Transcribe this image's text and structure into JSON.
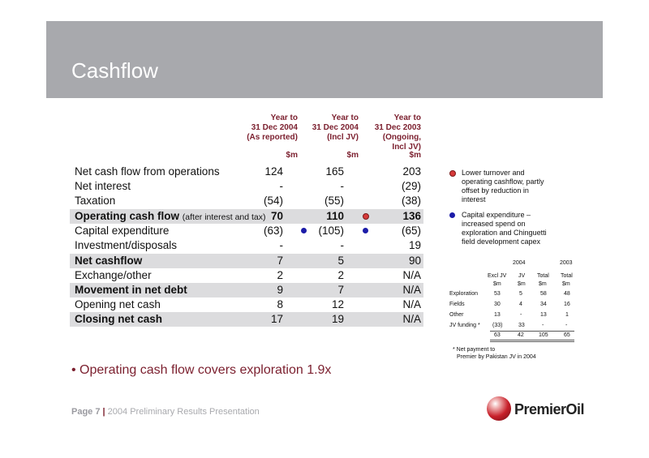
{
  "title": "Cashflow",
  "columns": [
    {
      "lines": [
        "Year to",
        "31 Dec 2004",
        "(As reported)"
      ],
      "unit": "$m"
    },
    {
      "lines": [
        "Year to",
        "31 Dec 2004",
        "(Incl JV)"
      ],
      "unit": "$m"
    },
    {
      "lines": [
        "Year to",
        "31 Dec 2003",
        "(Ongoing,",
        "Incl JV)"
      ],
      "unit": "$m"
    }
  ],
  "rows": [
    {
      "label": "Net cash flow from operations",
      "v": [
        "124",
        "165",
        "203"
      ]
    },
    {
      "label": "Net interest",
      "v": [
        "-",
        "-",
        "(29)"
      ]
    },
    {
      "label": "Taxation",
      "v": [
        "(54)",
        "(55)",
        "(38)"
      ]
    },
    {
      "label": "Operating cash flow",
      "note": "(after interest and tax)",
      "v": [
        "70",
        "110",
        "136"
      ]
    },
    {
      "label": "Capital expenditure",
      "v": [
        "(63)",
        "(105)",
        "(65)"
      ]
    },
    {
      "label": "Investment/disposals",
      "v": [
        "-",
        "-",
        "19"
      ]
    },
    {
      "label": "Net cashflow",
      "v": [
        "7",
        "5",
        "90"
      ]
    },
    {
      "label": "Exchange/other",
      "v": [
        "2",
        "2",
        "N/A"
      ]
    },
    {
      "label": "Movement in net debt",
      "v": [
        "9",
        "7",
        "N/A"
      ]
    },
    {
      "label": "Opening net cash",
      "v": [
        "8",
        "12",
        "N/A"
      ]
    },
    {
      "label": "Closing net cash",
      "v": [
        "17",
        "19",
        "N/A"
      ]
    }
  ],
  "notes": [
    {
      "color": "#d63a3a",
      "lines": [
        "Lower turnover and",
        "operating cashflow, partly",
        "offset by reduction in",
        "interest"
      ]
    },
    {
      "color": "#1c1ca8",
      "lines": [
        "Capital expenditure –",
        "increased spend on",
        "exploration and Chinguetti",
        "field development capex"
      ]
    }
  ],
  "mini_table": {
    "years": [
      "2004",
      "2003"
    ],
    "headers": [
      "Excl JV",
      "JV",
      "Total",
      "Total"
    ],
    "units": [
      "$m",
      "$m",
      "$m",
      "$m"
    ],
    "rows": [
      {
        "label": "Exploration",
        "v": [
          "53",
          "5",
          "58",
          "48"
        ]
      },
      {
        "label": "Fields",
        "v": [
          "30",
          "4",
          "34",
          "16"
        ]
      },
      {
        "label": "Other",
        "v": [
          "13",
          "-",
          "13",
          "1"
        ]
      },
      {
        "label": "JV funding *",
        "v": [
          "(33)",
          "33",
          "-",
          "-"
        ]
      }
    ],
    "totals": [
      "63",
      "42",
      "105",
      "65"
    ]
  },
  "footnote": [
    "*  Net payment to",
    "   Premier by Pakistan JV in 2004"
  ],
  "bullet": "• Operating cash flow covers exploration 1.9x",
  "footer": {
    "page": "Page 7",
    "sep": "|",
    "text": "2004 Preliminary Results Presentation"
  },
  "logo": "PremierOil"
}
